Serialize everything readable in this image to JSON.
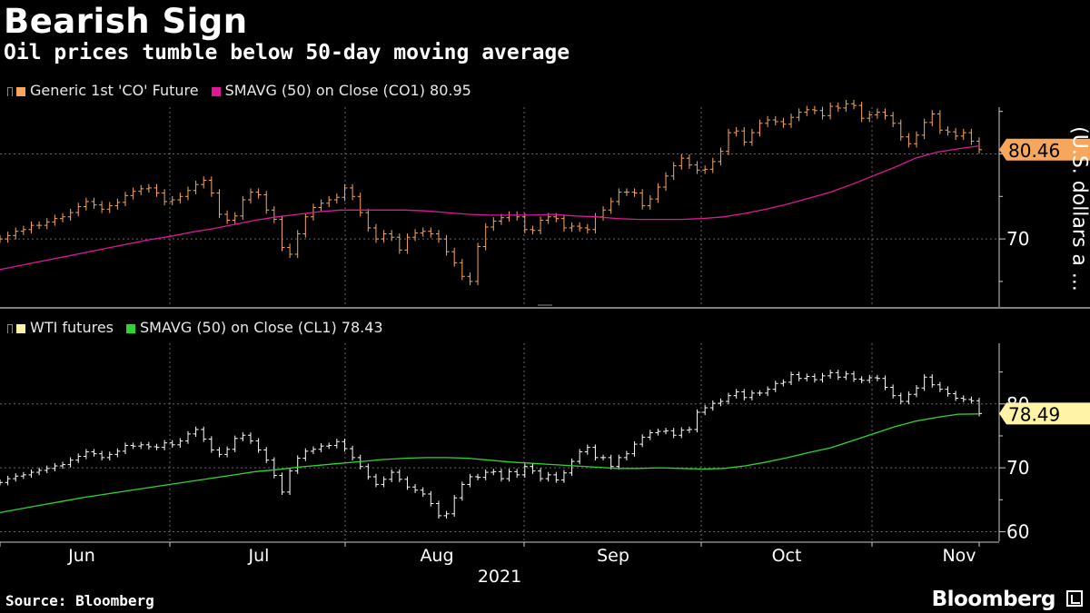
{
  "title": "Bearish Sign",
  "subtitle": "Oil prices tumble below 50-day moving average",
  "source": "Source: Bloomberg",
  "brand": "Bloomberg",
  "colors": {
    "brent": "#f7a75c",
    "brent_ma": "#e0179b",
    "wti": "#ffffff",
    "wti_legend": "#fff3a5",
    "wti_ma": "#2fd52f",
    "grid": "#666666",
    "label_brent_bg": "#f7a75c",
    "label_wti_bg": "#fff3a5"
  },
  "chart_data": [
    {
      "type": "line",
      "panel": "top",
      "legend": [
        {
          "label": "Generic 1st 'CO' Future",
          "color": "#f7a75c"
        },
        {
          "label": "SMAVG (50)  on Close (CO1) 80.95",
          "color": "#e0179b"
        }
      ],
      "ylabel": "(U.S. dollars a ...",
      "y_ticks": [
        70
      ],
      "ylim": [
        62,
        85.5
      ],
      "last_value_label": "80.46",
      "series": [
        {
          "name": "Generic 1st 'CO' Future",
          "values": [
            70,
            70.4,
            70.9,
            71.1,
            71.6,
            71.6,
            72.0,
            72.4,
            72.6,
            73.1,
            73.8,
            74.4,
            74.0,
            73.5,
            73.9,
            74.3,
            75.1,
            75.6,
            75.9,
            76.0,
            75.4,
            74.4,
            74.6,
            75.0,
            75.7,
            76.4,
            76.9,
            75.4,
            72.9,
            72.2,
            72.7,
            74.6,
            75.5,
            75.2,
            73.4,
            72.3,
            69.0,
            68.2,
            70.6,
            72.6,
            73.7,
            74.2,
            74.6,
            74.9,
            76.0,
            75.0,
            73.1,
            71.3,
            70.0,
            70.6,
            70.2,
            68.7,
            70.2,
            70.7,
            70.9,
            70.6,
            70.0,
            68.5,
            67.2,
            65.6,
            65.0,
            69.1,
            71.4,
            72.1,
            72.5,
            72.8,
            72.6,
            71.1,
            71.0,
            72.2,
            72.6,
            72.4,
            71.3,
            71.5,
            71.3,
            71.1,
            72.6,
            73.4,
            74.4,
            75.5,
            75.5,
            75.4,
            73.9,
            74.7,
            76.1,
            77.4,
            78.6,
            79.5,
            78.7,
            78.1,
            78.2,
            79.1,
            80.3,
            82.5,
            82.7,
            81.4,
            82.5,
            83.6,
            84.0,
            83.8,
            83.5,
            84.3,
            84.9,
            85.2,
            85.1,
            84.5,
            85.6,
            85.4,
            85.9,
            85.7,
            84.2,
            84.6,
            84.9,
            84.5,
            83.6,
            82.0,
            81.2,
            82.2,
            83.7,
            84.7,
            82.8,
            82.6,
            82.1,
            82.5,
            81.5,
            80.5
          ]
        },
        {
          "name": "SMAVG (50)  on Close (CO1) 80.95",
          "values": [
            66.4,
            66.9,
            67.4,
            67.9,
            68.4,
            68.9,
            69.4,
            69.9,
            70.3,
            70.8,
            71.2,
            71.7,
            72.2,
            72.6,
            72.9,
            73.2,
            73.4,
            73.4,
            73.4,
            73.4,
            73.3,
            73.1,
            72.9,
            72.8,
            72.8,
            72.8,
            72.9,
            72.7,
            72.6,
            72.4,
            72.3,
            72.3,
            72.3,
            72.4,
            72.6,
            73.0,
            73.5,
            74.1,
            74.8,
            75.5,
            76.4,
            77.4,
            78.4,
            79.5,
            80.2,
            80.6,
            80.95
          ]
        }
      ]
    },
    {
      "type": "line",
      "panel": "bottom",
      "legend": [
        {
          "label": "WTI futures",
          "color": "#fff3a5"
        },
        {
          "label": "SMAVG (50)  on Close (CL1) 78.43",
          "color": "#2fd52f"
        }
      ],
      "y_ticks": [
        60,
        70,
        80
      ],
      "ylim": [
        58.5,
        89.5
      ],
      "last_value_label": "78.49",
      "x_labels": [
        "Jun",
        "Jul",
        "Aug",
        "Sep",
        "Oct",
        "Nov"
      ],
      "x_year": "2021",
      "series": [
        {
          "name": "WTI futures",
          "values": [
            67.7,
            68.3,
            68.7,
            68.9,
            69.3,
            69.6,
            69.9,
            70.3,
            70.5,
            71.2,
            71.8,
            72.5,
            72.2,
            71.6,
            72.1,
            72.6,
            73.5,
            73.4,
            73.6,
            73.3,
            73.2,
            73.9,
            73.6,
            74.2,
            75.3,
            76.0,
            74.5,
            72.8,
            72.1,
            72.9,
            74.6,
            75.1,
            74.2,
            72.8,
            71.2,
            68.8,
            66.2,
            69.5,
            71.5,
            72.6,
            72.9,
            73.4,
            73.5,
            74.1,
            73.0,
            71.6,
            70.2,
            68.6,
            67.4,
            68.2,
            69.3,
            68.2,
            67.0,
            66.5,
            65.9,
            64.4,
            62.5,
            62.8,
            65.3,
            67.4,
            68.6,
            68.5,
            69.3,
            69.4,
            68.3,
            69.4,
            68.9,
            70.2,
            69.5,
            68.3,
            68.9,
            68.1,
            69.2,
            71.0,
            72.5,
            73.2,
            71.6,
            71.6,
            70.2,
            71.6,
            72.2,
            73.7,
            74.8,
            75.5,
            75.7,
            75.8,
            75.1,
            75.9,
            76.0,
            78.7,
            79.4,
            80.1,
            80.4,
            81.3,
            81.9,
            81.0,
            81.7,
            81.7,
            82.3,
            83.2,
            83.4,
            84.6,
            84.0,
            84.3,
            83.8,
            84.4,
            84.9,
            84.2,
            84.7,
            83.9,
            83.7,
            84.1,
            84.0,
            82.6,
            81.3,
            80.4,
            81.5,
            82.5,
            84.2,
            83.0,
            82.3,
            81.6,
            80.9,
            80.7,
            80.5,
            78.5
          ]
        },
        {
          "name": "SMAVG (50)  on Close (CL1) 78.43",
          "values": [
            63.0,
            63.6,
            64.2,
            64.8,
            65.4,
            65.9,
            66.4,
            66.9,
            67.4,
            67.9,
            68.4,
            68.9,
            69.4,
            69.7,
            70.1,
            70.4,
            70.7,
            71.0,
            71.3,
            71.5,
            71.6,
            71.6,
            71.5,
            71.2,
            70.9,
            70.7,
            70.5,
            70.3,
            70.1,
            69.9,
            69.9,
            70.0,
            69.9,
            69.8,
            69.9,
            70.3,
            70.9,
            71.6,
            72.4,
            73.1,
            74.2,
            75.3,
            76.4,
            77.3,
            77.9,
            78.4,
            78.43
          ]
        }
      ]
    }
  ]
}
